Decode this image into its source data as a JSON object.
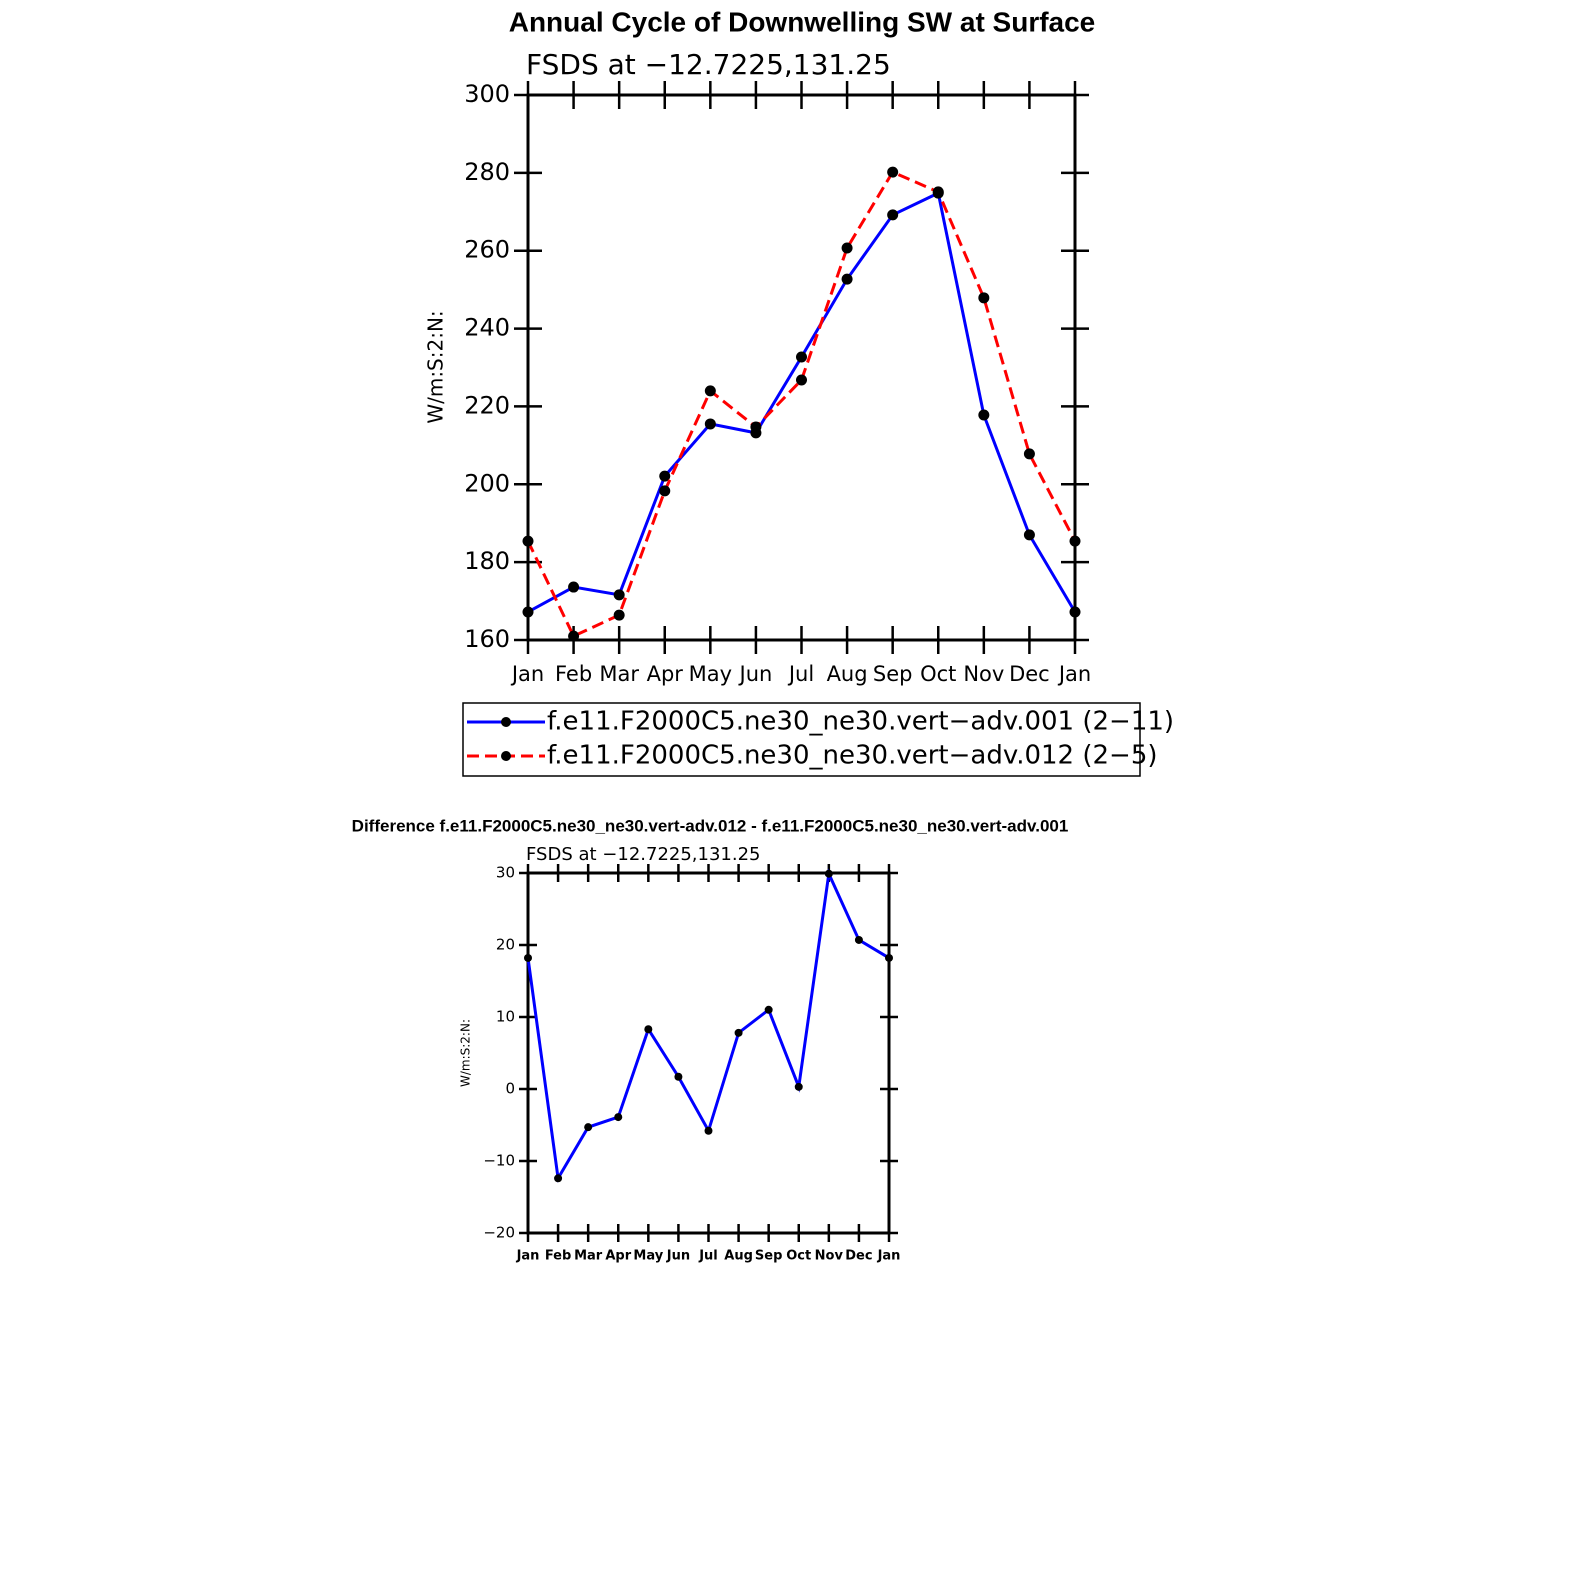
{
  "chart_data": [
    {
      "type": "line",
      "title": "Annual Cycle of Downwelling SW at Surface",
      "subtitle": "FSDS at −12.7225,131.25",
      "y_label": "W/m:S:2:N:",
      "categories": [
        "Jan",
        "Feb",
        "Mar",
        "Apr",
        "May",
        "Jun",
        "Jul",
        "Aug",
        "Sep",
        "Oct",
        "Nov",
        "Dec",
        "Jan"
      ],
      "series": [
        {
          "name": "f.e11.F2000C5.ne30_ne30.vert−adv.001 (2−11)",
          "color": "#0000ff",
          "linestyle": "solid",
          "values": [
            167.2,
            173.6,
            171.6,
            202.1,
            215.5,
            213.2,
            232.7,
            252.7,
            269.2,
            274.8,
            217.8,
            187.0,
            167.2
          ]
        },
        {
          "name": "f.e11.F2000C5.ne30_ne30.vert−adv.012 (2−5)",
          "color": "#ff0000",
          "linestyle": "dashed",
          "values": [
            185.4,
            161.0,
            166.4,
            198.3,
            224.0,
            214.7,
            226.8,
            260.7,
            280.2,
            275.1,
            247.9,
            207.8,
            185.4
          ]
        }
      ],
      "marker_color": "#000000",
      "ylim": [
        160,
        300
      ],
      "yticks": [
        160,
        180,
        200,
        220,
        240,
        260,
        280,
        300
      ],
      "legend": "bottom"
    },
    {
      "type": "line",
      "title": "Difference f.e11.F2000C5.ne30_ne30.vert-adv.012 - f.e11.F2000C5.ne30_ne30.vert-adv.001",
      "subtitle": "FSDS at −12.7225,131.25",
      "y_label": "W/m:S:2:N:",
      "categories": [
        "Jan",
        "Feb",
        "Mar",
        "Apr",
        "May",
        "Jun",
        "Jul",
        "Aug",
        "Sep",
        "Oct",
        "Nov",
        "Dec",
        "Jan"
      ],
      "series": [
        {
          "color": "#0000ff",
          "linestyle": "solid",
          "values": [
            18.2,
            -12.4,
            -5.3,
            -3.9,
            8.3,
            1.7,
            -5.8,
            7.8,
            11.0,
            0.3,
            29.9,
            20.7,
            18.2
          ]
        }
      ],
      "marker_color": "#000000",
      "ylim": [
        -20,
        30
      ],
      "yticks": [
        {
          "value": -20,
          "label": "−20"
        },
        {
          "value": -10,
          "label": "−10"
        },
        0,
        10,
        20,
        30
      ]
    }
  ]
}
